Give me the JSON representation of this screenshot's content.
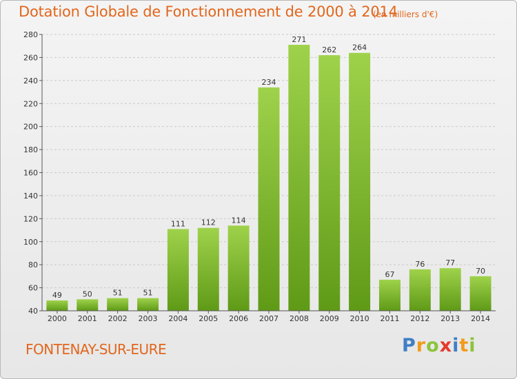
{
  "title": "Dotation Globale de Fonctionnement de 2000 à 2014",
  "subtitle": "(en milliers d'€)",
  "place": "FONTENAY-SUR-EURE",
  "brand": {
    "letters": [
      "P",
      "r",
      "o",
      "x",
      "i",
      "t",
      "i"
    ],
    "colors": [
      "#3f7fc6",
      "#f29b1b",
      "#8cc43c",
      "#e53a2c",
      "#3f7fc6",
      "#f29b1b",
      "#8cc43c"
    ]
  },
  "colors": {
    "title": "#e2661c",
    "bar_top": "#9fd24b",
    "bar_bottom": "#5f9a17",
    "grid": "#c9c9c9",
    "axis": "#555555"
  },
  "chart_data": {
    "type": "bar",
    "categories": [
      "2000",
      "2001",
      "2002",
      "2003",
      "2004",
      "2005",
      "2006",
      "2007",
      "2008",
      "2009",
      "2010",
      "2011",
      "2012",
      "2013",
      "2014"
    ],
    "values": [
      49,
      50,
      51,
      51,
      111,
      112,
      114,
      234,
      271,
      262,
      264,
      67,
      76,
      77,
      70
    ],
    "ylim": [
      40,
      280
    ],
    "yticks": [
      40,
      60,
      80,
      100,
      120,
      140,
      160,
      180,
      200,
      220,
      240,
      260,
      280
    ],
    "grid": true,
    "data_labels": true
  }
}
